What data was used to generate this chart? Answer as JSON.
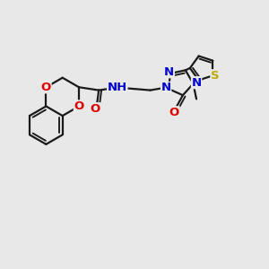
{
  "bg_color": "#e8e8e8",
  "bond_color": "#1a1a1a",
  "bond_lw": 1.6,
  "atom_colors": {
    "O": "#dd0000",
    "N": "#0000cc",
    "S": "#bbaa00",
    "C": "#1a1a1a"
  },
  "font_size": 9.5,
  "figsize": [
    3.0,
    3.0
  ],
  "dpi": 100,
  "xlim": [
    0,
    10
  ],
  "ylim": [
    0,
    10
  ]
}
